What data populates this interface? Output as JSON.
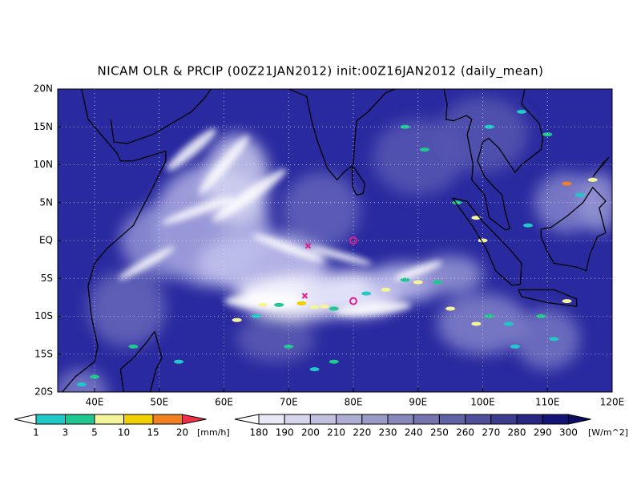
{
  "title": "NICAM OLR & PRCIP (00Z21JAN2012) init:00Z16JAN2012 (daily_mean)",
  "map": {
    "lat_labels": [
      "20N",
      "15N",
      "10N",
      "5N",
      "EQ",
      "5S",
      "10S",
      "15S",
      "20S"
    ],
    "lon_labels": [
      "40E",
      "50E",
      "60E",
      "70E",
      "80E",
      "90E",
      "100E",
      "110E",
      "120E"
    ]
  },
  "precip_legend": {
    "labels": [
      "1",
      "3",
      "5",
      "10",
      "15",
      "20"
    ],
    "unit": "[mm/h]"
  },
  "olr_legend": {
    "labels": [
      "180",
      "190",
      "200",
      "210",
      "220",
      "230",
      "240",
      "250",
      "260",
      "270",
      "280",
      "290",
      "300"
    ],
    "unit": "[W/m^2]"
  }
}
